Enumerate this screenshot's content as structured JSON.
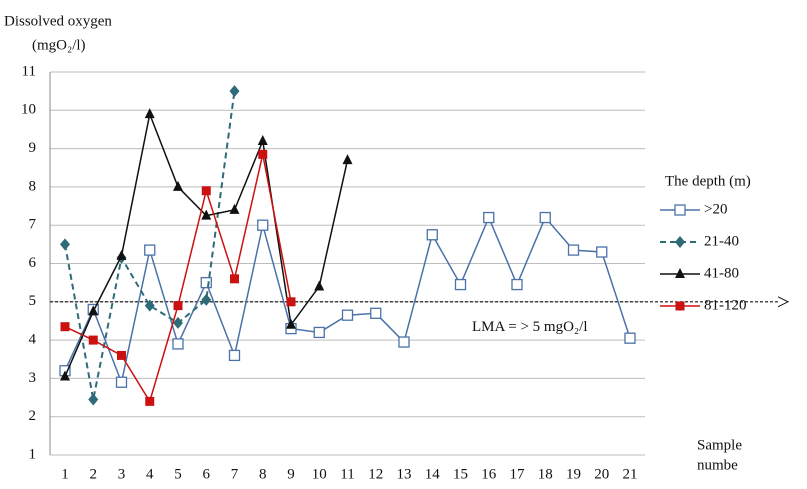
{
  "chart_data": {
    "type": "line",
    "y_label_lines": [
      "Dissolved oxygen",
      "(mgO₂/l)"
    ],
    "x_label_lines": [
      "Sample",
      "numbe"
    ],
    "legend_title": "The depth (m)",
    "legend": "right",
    "grid": true,
    "categories": [
      "1",
      "2",
      "3",
      "4",
      "5",
      "6",
      "7",
      "8",
      "9",
      "10",
      "11",
      "12",
      "13",
      "14",
      "15",
      "16",
      "17",
      "18",
      "19",
      "20",
      "21"
    ],
    "ylim": [
      1,
      11
    ],
    "yticks": [
      1,
      2,
      3,
      4,
      5,
      6,
      7,
      8,
      9,
      10,
      11
    ],
    "lma": {
      "value": 5,
      "label": "LMA = > 5 mgO₂/l"
    },
    "series": [
      {
        "name": ">20",
        "color": "#4a72a8",
        "marker": "square-open",
        "dash": false,
        "values": [
          3.2,
          4.8,
          2.9,
          6.35,
          3.9,
          5.5,
          3.6,
          7.0,
          4.3,
          4.2,
          4.65,
          4.7,
          3.95,
          6.75,
          5.45,
          7.2,
          5.45,
          7.2,
          6.35,
          6.3,
          4.05
        ]
      },
      {
        "name": "21-40",
        "color": "#2e6b78",
        "marker": "diamond",
        "dash": true,
        "values": [
          6.5,
          2.45,
          6.15,
          4.9,
          4.45,
          5.05,
          10.5,
          null,
          null,
          null,
          null,
          null,
          null,
          null,
          null,
          null,
          null,
          null,
          null,
          null,
          null
        ]
      },
      {
        "name": "41-80",
        "color": "#111111",
        "marker": "triangle",
        "dash": false,
        "values": [
          3.05,
          4.75,
          6.2,
          9.9,
          8.0,
          7.25,
          7.4,
          9.2,
          4.4,
          5.4,
          8.7,
          null,
          null,
          null,
          null,
          null,
          null,
          null,
          null,
          null,
          null
        ]
      },
      {
        "name": "81-120",
        "color": "#cc1111",
        "marker": "square",
        "dash": false,
        "values": [
          4.35,
          4.0,
          3.6,
          2.4,
          4.9,
          7.9,
          5.6,
          8.85,
          5.0,
          null,
          null,
          null,
          null,
          null,
          null,
          null,
          null,
          null,
          null,
          null,
          null
        ]
      }
    ]
  }
}
